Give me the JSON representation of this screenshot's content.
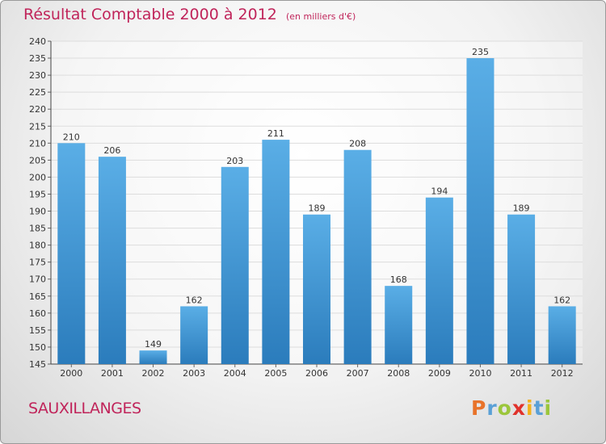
{
  "header": {
    "title": "Résultat Comptable 2000 à 2012",
    "unit": "(en milliers d'€)"
  },
  "footer": {
    "place": "SAUXILLANGES",
    "logo_text": "Proxiti",
    "logo_colors": [
      "#e8732a",
      "#5aa0d6",
      "#9bc63b",
      "#e0322b",
      "#f3b21a",
      "#5aa0d6",
      "#9bc63b"
    ]
  },
  "colors": {
    "title": "#c0245a",
    "bar_top": "#5aaee6",
    "bar_bottom": "#2b7cbc",
    "grid": "#dddddd"
  },
  "chart_data": {
    "type": "bar",
    "title": "Résultat Comptable 2000 à 2012",
    "subtitle": "(en milliers d'€)",
    "categories": [
      "2000",
      "2001",
      "2002",
      "2003",
      "2004",
      "2005",
      "2006",
      "2007",
      "2008",
      "2009",
      "2010",
      "2011",
      "2012"
    ],
    "values": [
      210,
      206,
      149,
      162,
      203,
      211,
      189,
      208,
      168,
      194,
      235,
      189,
      162
    ],
    "ylim": [
      145,
      240
    ],
    "ytick_step": 5,
    "grid": true,
    "xlabel": "",
    "ylabel": ""
  }
}
